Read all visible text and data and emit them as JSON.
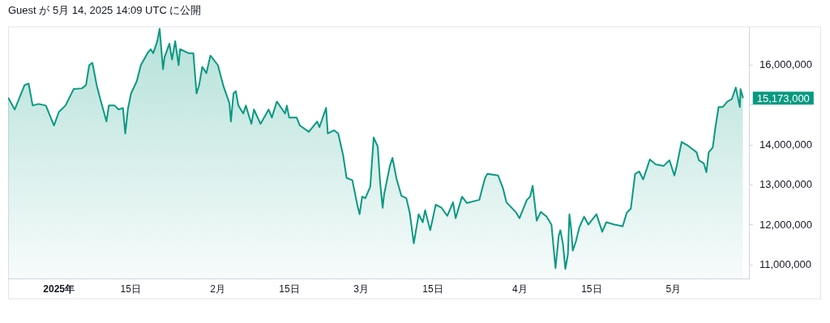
{
  "chart_data": {
    "type": "area",
    "title": "Guest が 5月 14, 2025 14:09 UTC に公開",
    "x": [
      "2024-12-22T02:00",
      "2024-12-23T09:00",
      "2024-12-25T07:00",
      "2024-12-26T02:00",
      "2024-12-26T21:00",
      "2024-12-28T00:00",
      "2024-12-29T11:00",
      "2024-12-31T01:00",
      "2025-01-01T00:00",
      "2025-01-02T07:00",
      "2025-01-03T21:00",
      "2025-01-05T12:00",
      "2025-01-06T07:00",
      "2025-01-06T22:00",
      "2025-01-07T13:00",
      "2025-01-08T09:00",
      "2025-01-09T00:00",
      "2025-01-10T07:00",
      "2025-01-10T18:00",
      "2025-01-11T21:00",
      "2025-01-12T16:00",
      "2025-01-13T12:00",
      "2025-01-13T23:00",
      "2025-01-14T11:00",
      "2025-01-15T02:00",
      "2025-01-16T05:00",
      "2025-01-17T00:00",
      "2025-01-18T07:00",
      "2025-01-18T22:00",
      "2025-01-19T10:00",
      "2025-01-20T05:00",
      "2025-01-20T16:00",
      "2025-01-21T08:00",
      "2025-01-21T15:00",
      "2025-01-22T14:00",
      "2025-01-23T02:00",
      "2025-01-23T17:00",
      "2025-01-24T09:00",
      "2025-01-24T16:00",
      "2025-01-26T07:00",
      "2025-01-27T06:00",
      "2025-01-27T21:00",
      "2025-01-28T09:00",
      "2025-01-29T00:00",
      "2025-01-29T19:00",
      "2025-01-30T14:00",
      "2025-02-01T01:00",
      "2025-02-02T04:00",
      "2025-02-03T07:00",
      "2025-02-03T14:00",
      "2025-02-04T02:00",
      "2025-02-04T13:00",
      "2025-02-05T01:00",
      "2025-02-06T00:00",
      "2025-02-06T12:00",
      "2025-02-07T14:00",
      "2025-02-08T02:00",
      "2025-02-09T09:00",
      "2025-02-10T23:00",
      "2025-02-11T14:00",
      "2025-02-12T13:00",
      "2025-02-14T04:00",
      "2025-02-14T12:00",
      "2025-02-14T23:00",
      "2025-02-16T10:00",
      "2025-02-17T01:00",
      "2025-02-18T19:00",
      "2025-02-20T10:00",
      "2025-02-20T21:00",
      "2025-02-22T04:00",
      "2025-02-22T12:00",
      "2025-02-23T18:00",
      "2025-02-24T13:00",
      "2025-02-25T12:00",
      "2025-02-26T04:00",
      "2025-02-27T07:00",
      "2025-02-28T06:00",
      "2025-02-28T17:00",
      "2025-03-01T05:00",
      "2025-03-01T20:00",
      "2025-03-02T19:00",
      "2025-03-03T11:00",
      "2025-03-04T06:00",
      "2025-03-04T17:00",
      "2025-03-05T05:00",
      "2025-03-05T12:00",
      "2025-03-06T15:00",
      "2025-03-07T03:00",
      "2025-03-07T22:00",
      "2025-03-08T21:00",
      "2025-03-09T20:00",
      "2025-03-10T12:00",
      "2025-03-11T07:00",
      "2025-03-12T06:00",
      "2025-03-13T01:00",
      "2025-03-13T12:00",
      "2025-03-14T12:00",
      "2025-03-15T14:00",
      "2025-03-16T17:00",
      "2025-03-17T20:00",
      "2025-03-18T23:00",
      "2025-03-19T11:00",
      "2025-03-20T17:00",
      "2025-03-21T16:00",
      "2025-03-24T02:00",
      "2025-03-25T05:00",
      "2025-03-25T16:00",
      "2025-03-27T18:00",
      "2025-03-28T17:00",
      "2025-03-29T09:00",
      "2025-03-31T07:00",
      "2025-03-31T22:00",
      "2025-04-02T09:00",
      "2025-04-03T00:00",
      "2025-04-03T12:00",
      "2025-04-04T07:00",
      "2025-04-05T02:00",
      "2025-04-06T05:00",
      "2025-04-07T04:00",
      "2025-04-07T23:00",
      "2025-04-08T14:00",
      "2025-04-08T22:00",
      "2025-04-09T10:00",
      "2025-04-09T21:00",
      "2025-04-10T09:00",
      "2025-04-10T16:00",
      "2025-04-11T00:00",
      "2025-04-11T08:00",
      "2025-04-11T23:00",
      "2025-04-12T14:00",
      "2025-04-13T13:00",
      "2025-04-14T09:00",
      "2025-04-15T23:00",
      "2025-04-17T02:00",
      "2025-04-17T21:00",
      "2025-04-19T12:00",
      "2025-04-21T02:00",
      "2025-04-21T21:00",
      "2025-04-22T16:00",
      "2025-04-23T12:00",
      "2025-04-24T07:00",
      "2025-04-25T02:00",
      "2025-04-26T09:00",
      "2025-04-27T12:00",
      "2025-04-29T02:00",
      "2025-04-30T05:00",
      "2025-05-01T04:00",
      "2025-05-01T15:00",
      "2025-05-02T14:00",
      "2025-05-03T21:00",
      "2025-05-05T12:00",
      "2025-05-05T23:00",
      "2025-05-06T22:00",
      "2025-05-07T10:00",
      "2025-05-07T21:00",
      "2025-05-08T16:00",
      "2025-05-09T04:00",
      "2025-05-09T19:00",
      "2025-05-10T14:00",
      "2025-05-11T13:00",
      "2025-05-12T09:00",
      "2025-05-13T04:00",
      "2025-05-13T23:00",
      "2025-05-14T02:00",
      "2025-05-14T14:00"
    ],
    "series": [
      {
        "color": "#089981",
        "values": [
          15190000,
          14890000,
          15500000,
          15540000,
          14990000,
          15030000,
          14990000,
          14490000,
          14830000,
          14990000,
          15400000,
          15420000,
          15500000,
          16000000,
          16060000,
          15500000,
          15190000,
          14590000,
          14990000,
          14990000,
          14890000,
          14930000,
          14290000,
          14890000,
          15290000,
          15600000,
          16000000,
          16300000,
          16400000,
          16300000,
          16600000,
          16910000,
          15900000,
          16200000,
          16540000,
          16140000,
          16600000,
          16000000,
          16400000,
          16300000,
          16300000,
          15290000,
          15500000,
          15960000,
          15800000,
          16240000,
          16000000,
          15460000,
          15050000,
          14590000,
          15290000,
          15350000,
          14990000,
          14790000,
          14990000,
          14530000,
          14890000,
          14530000,
          14890000,
          14690000,
          15090000,
          14790000,
          14990000,
          14690000,
          14690000,
          14490000,
          14330000,
          14590000,
          14450000,
          14930000,
          14290000,
          14370000,
          14290000,
          13740000,
          13180000,
          13120000,
          12510000,
          12270000,
          12710000,
          12670000,
          12960000,
          14190000,
          13960000,
          13080000,
          12430000,
          12770000,
          13480000,
          13680000,
          13160000,
          12730000,
          12670000,
          12310000,
          11540000,
          12270000,
          12070000,
          12370000,
          11870000,
          12510000,
          12430000,
          12230000,
          12570000,
          12170000,
          12710000,
          12550000,
          12630000,
          13180000,
          13280000,
          13240000,
          12920000,
          12570000,
          12310000,
          12170000,
          12630000,
          12710000,
          12980000,
          12110000,
          12330000,
          12210000,
          12010000,
          10920000,
          11730000,
          11870000,
          11520000,
          10900000,
          11260000,
          12270000,
          11930000,
          11360000,
          11600000,
          11930000,
          12210000,
          12010000,
          12270000,
          11830000,
          12070000,
          12010000,
          11970000,
          12310000,
          12410000,
          13280000,
          13340000,
          13140000,
          13640000,
          13520000,
          13480000,
          13620000,
          13240000,
          13480000,
          14080000,
          13980000,
          13820000,
          13620000,
          13540000,
          13320000,
          13820000,
          13940000,
          14430000,
          14950000,
          14950000,
          15090000,
          15150000,
          15440000,
          14950000,
          15400000,
          15173000
        ]
      }
    ],
    "xlim": [
      "2024-12-22T02:00",
      "2025-05-15T21:00"
    ],
    "xticks": [
      {
        "value": "2025-01-01",
        "label": "2025年"
      },
      {
        "value": "2025-01-15",
        "label": "15日"
      },
      {
        "value": "2025-02-01",
        "label": "2月"
      },
      {
        "value": "2025-02-15",
        "label": "15日"
      },
      {
        "value": "2025-03-01",
        "label": "3月"
      },
      {
        "value": "2025-03-15",
        "label": "15日"
      },
      {
        "value": "2025-04-01",
        "label": "4月"
      },
      {
        "value": "2025-04-15",
        "label": "15日"
      },
      {
        "value": "2025-05-01",
        "label": "5月"
      }
    ],
    "ylim": [
      10650000,
      16950000
    ],
    "yticks": [
      {
        "value": 11000000,
        "label": "11,000,000"
      },
      {
        "value": 12000000,
        "label": "12,000,000"
      },
      {
        "value": 13000000,
        "label": "13,000,000"
      },
      {
        "value": 14000000,
        "label": "14,000,000"
      },
      {
        "value": 15000000,
        "label": null
      },
      {
        "value": 16000000,
        "label": "16,000,000"
      }
    ],
    "annotations": [
      {
        "text": "15,173,000",
        "x": "2025-05-14T14:00",
        "y": 15173000
      }
    ],
    "grid": false,
    "legend": false,
    "marker": "none",
    "line_style": "solid"
  }
}
